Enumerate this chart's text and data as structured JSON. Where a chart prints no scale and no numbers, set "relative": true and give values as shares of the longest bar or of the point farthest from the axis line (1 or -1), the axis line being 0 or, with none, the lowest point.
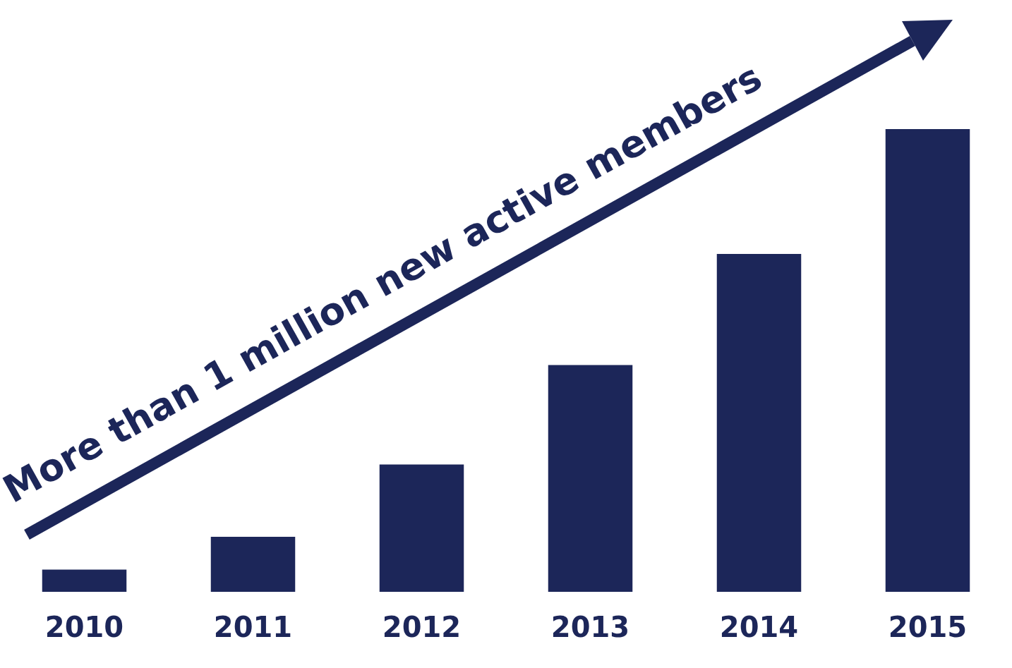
{
  "chart_data": {
    "type": "bar",
    "relative": true,
    "categories": [
      "2010",
      "2011",
      "2012",
      "2013",
      "2014",
      "2015"
    ],
    "values": [
      0.048,
      0.119,
      0.275,
      0.49,
      0.73,
      1
    ],
    "color": "#1c2659",
    "annotations": [
      "More than 1 million new active members"
    ],
    "grid": false,
    "legend": false
  }
}
